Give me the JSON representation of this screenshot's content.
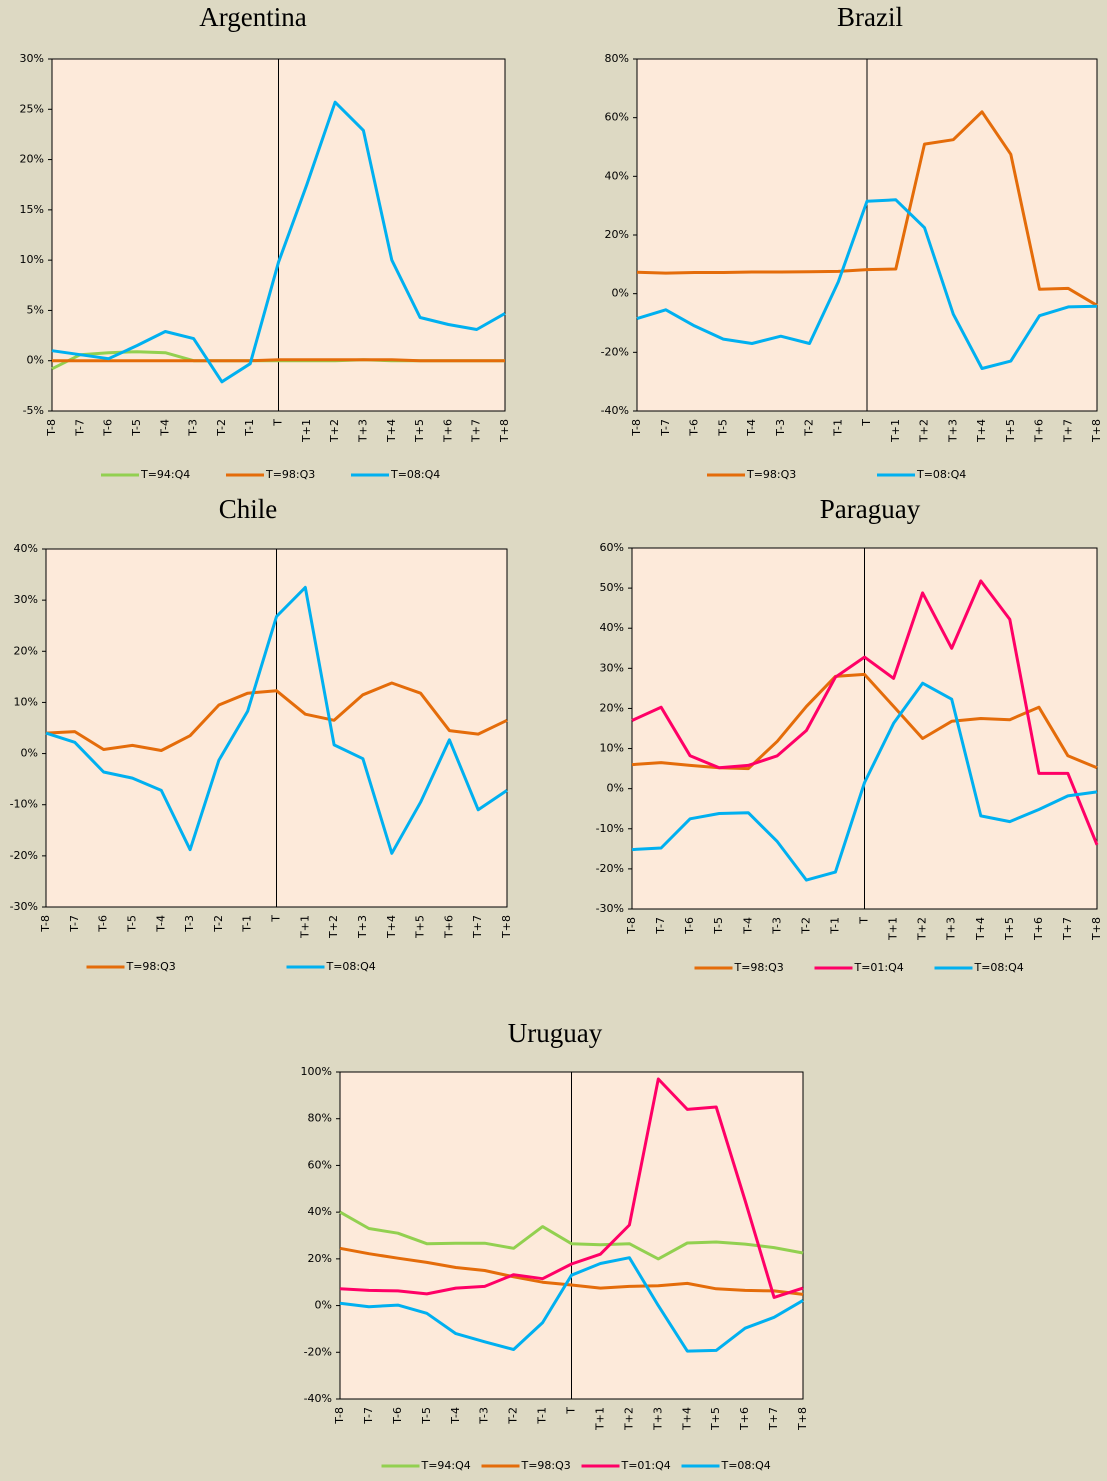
{
  "chart_data": [
    {
      "type": "line",
      "title": "Argentina",
      "categories": [
        "T-8",
        "T-7",
        "T-6",
        "T-5",
        "T-4",
        "T-3",
        "T-2",
        "T-1",
        "T",
        "T+1",
        "T+2",
        "T+3",
        "T+4",
        "T+5",
        "T+6",
        "T+7",
        "T+8"
      ],
      "series": [
        {
          "name": "T=94:Q4",
          "color": "#92d050",
          "values": [
            -0.8,
            0.6,
            0.8,
            0.9,
            0.8,
            0,
            0,
            0,
            0,
            0,
            0,
            0.1,
            0,
            0,
            0,
            0,
            0
          ]
        },
        {
          "name": "T=98:Q3",
          "color": "#e46c0a",
          "values": [
            0,
            0,
            0,
            0,
            0,
            0,
            0,
            0,
            0.1,
            0.1,
            0.1,
            0.1,
            0.1,
            0,
            0,
            0,
            0
          ]
        },
        {
          "name": "T=08:Q4",
          "color": "#00b0f0",
          "values": [
            1.0,
            0.6,
            0.2,
            1.5,
            2.9,
            2.2,
            -2.1,
            -0.3,
            9.8,
            17.5,
            25.7,
            22.9,
            10.0,
            4.3,
            3.6,
            3.1,
            4.7
          ]
        }
      ],
      "ylim": [
        -5,
        30
      ],
      "yticks": [
        {
          "value": -5,
          "label": "-5%"
        },
        {
          "value": 0,
          "label": "0%"
        },
        {
          "value": 5,
          "label": "5%"
        },
        {
          "value": 10,
          "label": "10%"
        },
        {
          "value": 15,
          "label": "15%"
        },
        {
          "value": 20,
          "label": "20%"
        },
        {
          "value": 25,
          "label": "25%"
        },
        {
          "value": 30,
          "label": "30%"
        }
      ]
    },
    {
      "type": "line",
      "title": "Brazil",
      "categories": [
        "T-8",
        "T-7",
        "T-6",
        "T-5",
        "T-4",
        "T-3",
        "T-2",
        "T-1",
        "T",
        "T+1",
        "T+2",
        "T+3",
        "T+4",
        "T+5",
        "T+6",
        "T+7",
        "T+8"
      ],
      "series": [
        {
          "name": "T=98:Q3",
          "color": "#e46c0a",
          "values": [
            7.3,
            7,
            7.2,
            7.2,
            7.4,
            7.4,
            7.5,
            7.6,
            8.2,
            8.4,
            51,
            52.5,
            62,
            47.5,
            1.5,
            1.8,
            -4
          ]
        },
        {
          "name": "T=08:Q4",
          "color": "#00b0f0",
          "values": [
            -8.5,
            -5.5,
            -11,
            -15.5,
            -17,
            -14.5,
            -17,
            4,
            31.5,
            32,
            22.5,
            -7,
            -25.5,
            -23,
            -7.5,
            -4.5,
            -4.3
          ]
        }
      ],
      "ylim": [
        -40,
        80
      ],
      "yticks": [
        {
          "value": -40,
          "label": "-40%"
        },
        {
          "value": -20,
          "label": "-20%"
        },
        {
          "value": 0,
          "label": "0%"
        },
        {
          "value": 20,
          "label": "20%"
        },
        {
          "value": 40,
          "label": "40%"
        },
        {
          "value": 60,
          "label": "60%"
        },
        {
          "value": 80,
          "label": "80%"
        }
      ]
    },
    {
      "type": "line",
      "title": "Chile",
      "categories": [
        "T-8",
        "T-7",
        "T-6",
        "T-5",
        "T-4",
        "T-3",
        "T-2",
        "T-1",
        "T",
        "T+1",
        "T+2",
        "T+3",
        "T+4",
        "T+5",
        "T+6",
        "T+7",
        "T+8"
      ],
      "series": [
        {
          "name": "T=98:Q3",
          "color": "#e46c0a",
          "values": [
            4,
            4.3,
            0.8,
            1.6,
            0.6,
            3.5,
            9.5,
            11.8,
            12.3,
            7.7,
            6.5,
            11.5,
            13.8,
            11.8,
            4.5,
            3.8,
            6.5
          ]
        },
        {
          "name": "T=08:Q4",
          "color": "#00b0f0",
          "values": [
            4,
            2.2,
            -3.6,
            -4.8,
            -7.2,
            -18.8,
            -1.3,
            8.3,
            26.8,
            32.5,
            1.7,
            -1,
            -19.5,
            -9.5,
            2.7,
            -11,
            -7.2
          ]
        }
      ],
      "ylim": [
        -30,
        40
      ],
      "yticks": [
        {
          "value": -30,
          "label": "-30%"
        },
        {
          "value": -20,
          "label": "-20%"
        },
        {
          "value": -10,
          "label": "-10%"
        },
        {
          "value": 0,
          "label": "0%"
        },
        {
          "value": 10,
          "label": "10%"
        },
        {
          "value": 20,
          "label": "20%"
        },
        {
          "value": 30,
          "label": "30%"
        },
        {
          "value": 40,
          "label": "40%"
        }
      ]
    },
    {
      "type": "line",
      "title": "Paraguay",
      "categories": [
        "T-8",
        "T-7",
        "T-6",
        "T-5",
        "T-4",
        "T-3",
        "T-2",
        "T-1",
        "T",
        "T+1",
        "T+2",
        "T+3",
        "T+4",
        "T+5",
        "T+6",
        "T+7",
        "T+8"
      ],
      "series": [
        {
          "name": "T=98:Q3",
          "color": "#e46c0a",
          "values": [
            6,
            6.5,
            5.8,
            5.2,
            5,
            11.8,
            20.5,
            28,
            28.5,
            20.5,
            12.5,
            16.8,
            17.5,
            17.2,
            20.3,
            8.2,
            5.2
          ]
        },
        {
          "name": "T=01:Q4",
          "color": "#ff0066",
          "values": [
            17,
            20.3,
            8.2,
            5.2,
            5.8,
            8.2,
            14.5,
            27.8,
            32.8,
            27.5,
            48.8,
            35,
            51.8,
            42.2,
            3.8,
            3.8,
            -14
          ]
        },
        {
          "name": "T=08:Q4",
          "color": "#00b0f0",
          "values": [
            -15.2,
            -14.8,
            -7.5,
            -6.2,
            -6,
            -13.2,
            -22.8,
            -20.8,
            1.5,
            16.3,
            26.3,
            22.3,
            -6.8,
            -8.2,
            -5.2,
            -1.8,
            -0.8
          ]
        }
      ],
      "ylim": [
        -30,
        60
      ],
      "yticks": [
        {
          "value": -30,
          "label": "-30%"
        },
        {
          "value": -20,
          "label": "-20%"
        },
        {
          "value": -10,
          "label": "-10%"
        },
        {
          "value": 0,
          "label": "0%"
        },
        {
          "value": 10,
          "label": "10%"
        },
        {
          "value": 20,
          "label": "20%"
        },
        {
          "value": 30,
          "label": "30%"
        },
        {
          "value": 40,
          "label": "40%"
        },
        {
          "value": 50,
          "label": "50%"
        },
        {
          "value": 60,
          "label": "60%"
        }
      ]
    },
    {
      "type": "line",
      "title": "Uruguay",
      "categories": [
        "T-8",
        "T-7",
        "T-6",
        "T-5",
        "T-4",
        "T-3",
        "T-2",
        "T-1",
        "T",
        "T+1",
        "T+2",
        "T+3",
        "T+4",
        "T+5",
        "T+6",
        "T+7",
        "T+8"
      ],
      "series": [
        {
          "name": "T=94:Q4",
          "color": "#92d050",
          "values": [
            40,
            33,
            31,
            26.5,
            26.7,
            26.7,
            24.5,
            33.8,
            26.5,
            26,
            26.5,
            20,
            26.8,
            27.2,
            26.3,
            24.8,
            22.5
          ]
        },
        {
          "name": "T=98:Q3",
          "color": "#e46c0a",
          "values": [
            24.5,
            22.2,
            20.3,
            18.5,
            16.3,
            15,
            12.3,
            10,
            8.8,
            7.5,
            8.2,
            8.5,
            9.5,
            7.2,
            6.5,
            6.3,
            4.8
          ]
        },
        {
          "name": "T=01:Q4",
          "color": "#ff0066",
          "values": [
            7.2,
            6.5,
            6.3,
            5,
            7.5,
            8.2,
            13.2,
            11.5,
            17.8,
            22,
            34.5,
            97,
            84,
            85,
            45,
            3.5,
            7.5
          ]
        },
        {
          "name": "T=08:Q4",
          "color": "#00b0f0",
          "values": [
            1,
            -0.5,
            0.2,
            -3.3,
            -12,
            -15.5,
            -18.8,
            -7.3,
            13,
            18,
            20.5,
            0,
            -19.5,
            -19.2,
            -9.7,
            -5,
            2.2
          ]
        }
      ],
      "ylim": [
        -40,
        100
      ],
      "yticks": [
        {
          "value": -40,
          "label": "-40%"
        },
        {
          "value": -20,
          "label": "-20%"
        },
        {
          "value": 0,
          "label": "0%"
        },
        {
          "value": 20,
          "label": "20%"
        },
        {
          "value": 40,
          "label": "40%"
        },
        {
          "value": 60,
          "label": "60%"
        },
        {
          "value": 80,
          "label": "80%"
        },
        {
          "value": 100,
          "label": "100%"
        }
      ]
    }
  ]
}
